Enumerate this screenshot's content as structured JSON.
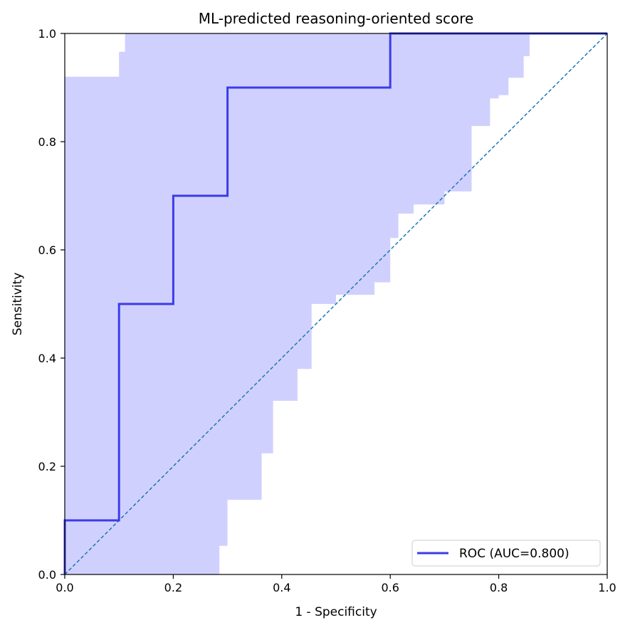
{
  "chart_data": {
    "type": "line",
    "title": "ML-predicted reasoning-oriented score",
    "xlabel": "1 - Specificity",
    "ylabel": "Sensitivity",
    "xlim": [
      0,
      1
    ],
    "ylim": [
      0,
      1
    ],
    "xticks": [
      "0.0",
      "0.2",
      "0.4",
      "0.6",
      "0.8",
      "1.0"
    ],
    "yticks": [
      "0.0",
      "0.2",
      "0.4",
      "0.6",
      "0.8",
      "1.0"
    ],
    "grid": false,
    "legend_position": "bottom-right",
    "series": [
      {
        "name": "ROC (AUC=0.800)",
        "color": "#3b3bea",
        "style": "step",
        "x": [
          0.0,
          0.0,
          0.1,
          0.1,
          0.2,
          0.2,
          0.3,
          0.3,
          0.6,
          0.6,
          1.0
        ],
        "y": [
          0.0,
          0.1,
          0.1,
          0.5,
          0.5,
          0.7,
          0.7,
          0.9,
          0.9,
          1.0,
          1.0
        ]
      }
    ],
    "reference_line": {
      "color": "#1f77b4",
      "style": "dashed",
      "x": [
        0,
        1
      ],
      "y": [
        0,
        1
      ]
    },
    "confidence_band": {
      "color": "#d0d0ff",
      "lower": [
        [
          0.0,
          0.0
        ],
        [
          0.285,
          0.0
        ],
        [
          0.285,
          0.053
        ],
        [
          0.3,
          0.053
        ],
        [
          0.3,
          0.138
        ],
        [
          0.363,
          0.138
        ],
        [
          0.363,
          0.224
        ],
        [
          0.384,
          0.224
        ],
        [
          0.384,
          0.321
        ],
        [
          0.429,
          0.321
        ],
        [
          0.429,
          0.38
        ],
        [
          0.455,
          0.38
        ],
        [
          0.455,
          0.5
        ],
        [
          0.5,
          0.5
        ],
        [
          0.5,
          0.517
        ],
        [
          0.571,
          0.517
        ],
        [
          0.571,
          0.54
        ],
        [
          0.6,
          0.54
        ],
        [
          0.6,
          0.622
        ],
        [
          0.615,
          0.622
        ],
        [
          0.615,
          0.667
        ],
        [
          0.643,
          0.667
        ],
        [
          0.643,
          0.684
        ],
        [
          0.7,
          0.684
        ],
        [
          0.7,
          0.708
        ],
        [
          0.75,
          0.708
        ],
        [
          0.75,
          0.829
        ],
        [
          0.784,
          0.829
        ],
        [
          0.784,
          0.88
        ],
        [
          0.8,
          0.88
        ],
        [
          0.8,
          0.886
        ],
        [
          0.818,
          0.886
        ],
        [
          0.818,
          0.918
        ],
        [
          0.846,
          0.918
        ],
        [
          0.846,
          0.958
        ],
        [
          0.857,
          0.958
        ],
        [
          0.857,
          1.0
        ]
      ],
      "upper": [
        [
          0.0,
          0.92
        ],
        [
          0.1,
          0.92
        ],
        [
          0.1,
          0.966
        ],
        [
          0.111,
          0.966
        ],
        [
          0.111,
          1.0
        ]
      ]
    }
  }
}
